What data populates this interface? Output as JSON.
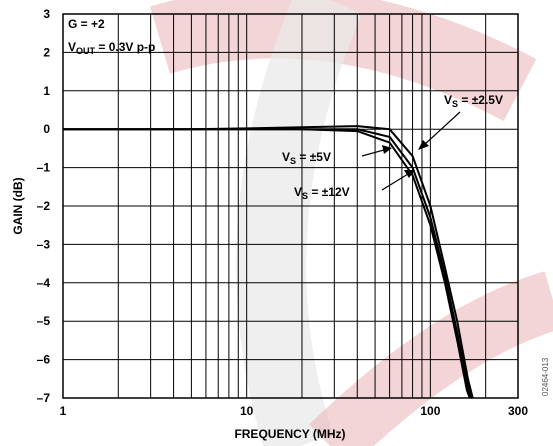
{
  "chart_data": {
    "type": "line",
    "xlabel": "FREQUENCY (MHz)",
    "ylabel": "GAIN (dB)",
    "xscale": "log",
    "xlim": [
      1,
      300
    ],
    "ylim": [
      -7,
      3
    ],
    "grid": true,
    "x_ticks": [
      "1",
      "10",
      "100",
      "300"
    ],
    "y_ticks": [
      "3",
      "2",
      "1",
      "0",
      "–1",
      "–2",
      "–3",
      "–4",
      "–5",
      "–6",
      "–7"
    ],
    "conditions": [
      "G = +2",
      "V_OUT = 0.3V p-p"
    ],
    "series": [
      {
        "name": "V_S = ±2.5V",
        "x": [
          1,
          2,
          5,
          10,
          20,
          40,
          60,
          80,
          100,
          120,
          140,
          160,
          170
        ],
        "y": [
          0.0,
          0.0,
          0.0,
          0.02,
          0.05,
          0.08,
          0.0,
          -0.7,
          -2.0,
          -3.6,
          -5.0,
          -6.5,
          -7.0
        ]
      },
      {
        "name": "V_S = ±5V",
        "x": [
          1,
          2,
          5,
          10,
          20,
          40,
          60,
          80,
          100,
          120,
          140,
          160,
          166
        ],
        "y": [
          0.0,
          0.0,
          0.0,
          0.0,
          0.0,
          0.0,
          -0.2,
          -1.0,
          -2.3,
          -3.8,
          -5.3,
          -6.7,
          -7.0
        ]
      },
      {
        "name": "V_S = ±12V",
        "x": [
          1,
          2,
          5,
          10,
          20,
          40,
          60,
          80,
          100,
          120,
          140,
          158,
          164
        ],
        "y": [
          0.0,
          0.0,
          0.0,
          0.0,
          0.0,
          -0.05,
          -0.35,
          -1.2,
          -2.5,
          -4.0,
          -5.5,
          -6.8,
          -7.0
        ]
      }
    ],
    "annotations": {
      "g": "G = +2",
      "vout_v": "V",
      "vout_sub": "OUT",
      "vout_rest": " = 0.3V p-p",
      "vs25_v": "V",
      "vs25_sub": "S",
      "vs25_rest": " = ±2.5V",
      "vs5_v": "V",
      "vs5_sub": "S",
      "vs5_rest": " = ±5V",
      "vs12_v": "V",
      "vs12_sub": "S",
      "vs12_rest": " = ±12V"
    },
    "figure_code": "02464-013"
  },
  "colors": {
    "line": "#000000",
    "grid": "#000000",
    "background": "#ffffff",
    "watermark_red": "#e0a3a8",
    "watermark_gray": "#e6e6e6"
  }
}
